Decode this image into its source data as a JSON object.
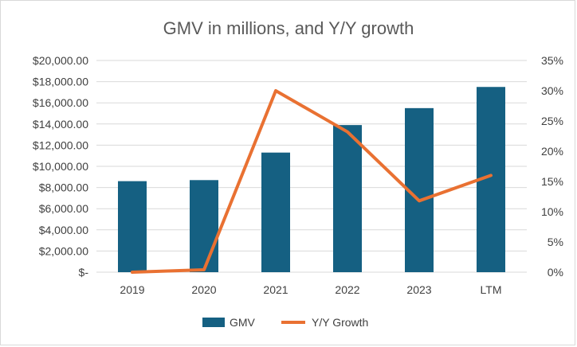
{
  "chart_data": {
    "type": "bar",
    "title": "GMV in millions, and Y/Y growth",
    "categories": [
      "2019",
      "2020",
      "2021",
      "2022",
      "2023",
      "LTM"
    ],
    "y_left": {
      "min": 0,
      "max": 20000,
      "step": 2000,
      "tick_labels": [
        "$-",
        "$2,000.00",
        "$4,000.00",
        "$6,000.00",
        "$8,000.00",
        "$10,000.00",
        "$12,000.00",
        "$14,000.00",
        "$16,000.00",
        "$18,000.00",
        "$20,000.00"
      ]
    },
    "y_right": {
      "min": 0,
      "max": 35,
      "step": 5,
      "tick_labels": [
        "0%",
        "5%",
        "10%",
        "15%",
        "20%",
        "25%",
        "30%",
        "35%"
      ]
    },
    "series": [
      {
        "name": "GMV",
        "type": "bar",
        "axis": "left",
        "color": "#156082",
        "values": [
          8600,
          8700,
          11300,
          13900,
          15500,
          17500
        ]
      },
      {
        "name": "Y/Y Growth",
        "type": "line",
        "axis": "right",
        "color": "#E97132",
        "values": [
          0.0,
          0.4,
          30.0,
          23.2,
          11.8,
          16.0
        ]
      }
    ],
    "grid": true,
    "legend_position": "bottom"
  }
}
